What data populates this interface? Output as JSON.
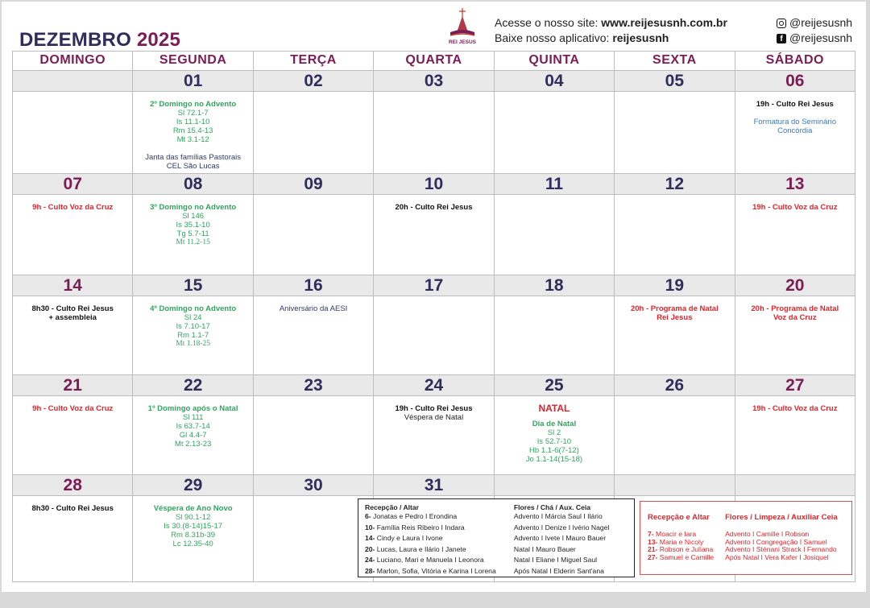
{
  "header": {
    "month": "DEZEMBRO",
    "year": "2025",
    "logo_text": "REI JESUS",
    "site_label": "Acesse o nosso site: ",
    "site_url": "www.reijesusnh.com.br",
    "app_label": "Baixe nosso aplicativo: ",
    "app_name": "reijesusnh",
    "instagram": "@reijesusnh",
    "facebook": "@reijesusnh"
  },
  "weekdays": [
    "DOMINGO",
    "SEGUNDA",
    "TERÇA",
    "QUARTA",
    "QUINTA",
    "SEXTA",
    "SÁBADO"
  ],
  "colors": {
    "accent": "#7b1d55",
    "navy": "#2e2d5c",
    "green": "#2ea65c",
    "red": "#e0252b"
  },
  "weeks": [
    {
      "days": [
        {
          "num": "",
          "items": []
        },
        {
          "num": "01",
          "items": [
            {
              "t": "2º Domingo no Advento",
              "s": "green-bold"
            },
            {
              "t": "Sl 72.1-7",
              "s": "green"
            },
            {
              "t": "Is 11.1-10",
              "s": "green"
            },
            {
              "t": "Rm 15.4-13",
              "s": "green"
            },
            {
              "t": "Mt 3.1-12",
              "s": "green"
            },
            {
              "t": "Janta das famílias Pastorais",
              "s": "navy",
              "gap": true
            },
            {
              "t": "CEL São Lucas",
              "s": "navy"
            }
          ]
        },
        {
          "num": "02",
          "items": []
        },
        {
          "num": "03",
          "items": []
        },
        {
          "num": "04",
          "items": []
        },
        {
          "num": "05",
          "items": []
        },
        {
          "num": "06",
          "items": [
            {
              "t": "19h - Culto Rei Jesus",
              "s": "black-bold"
            },
            {
              "t": "Formatura do Seminário",
              "s": "blue",
              "gap": true
            },
            {
              "t": "Concórdia",
              "s": "blue"
            }
          ]
        }
      ]
    },
    {
      "days": [
        {
          "num": "07",
          "items": [
            {
              "t": "9h - Culto Voz da Cruz",
              "s": "red-bold"
            }
          ]
        },
        {
          "num": "08",
          "items": [
            {
              "t": "3º Domingo no Advento",
              "s": "green-bold"
            },
            {
              "t": "Sl 146",
              "s": "green"
            },
            {
              "t": "Is 35.1-10",
              "s": "green"
            },
            {
              "t": "Tg 5.7-11",
              "s": "green"
            },
            {
              "t": "Mt 11.2-15",
              "s": "green-serif"
            }
          ]
        },
        {
          "num": "09",
          "items": []
        },
        {
          "num": "10",
          "items": [
            {
              "t": "20h - Culto Rei Jesus",
              "s": "black-bold"
            }
          ]
        },
        {
          "num": "11",
          "items": []
        },
        {
          "num": "12",
          "items": []
        },
        {
          "num": "13",
          "items": [
            {
              "t": "19h - Culto Voz da Cruz",
              "s": "red-bold"
            }
          ]
        }
      ]
    },
    {
      "days": [
        {
          "num": "14",
          "items": [
            {
              "t": "8h30 - Culto Rei Jesus",
              "s": "black-bold"
            },
            {
              "t": "+ assembleia",
              "s": "black-bold"
            }
          ]
        },
        {
          "num": "15",
          "items": [
            {
              "t": "4º Domingo no Advento",
              "s": "green-bold"
            },
            {
              "t": "Sl 24",
              "s": "green"
            },
            {
              "t": "Is 7.10-17",
              "s": "green"
            },
            {
              "t": "Rm 1.1-7",
              "s": "green"
            },
            {
              "t": "Mt 1.18-25",
              "s": "green-serif"
            }
          ]
        },
        {
          "num": "16",
          "items": [
            {
              "t": "Aniversário da AESI",
              "s": "navy"
            }
          ]
        },
        {
          "num": "17",
          "items": []
        },
        {
          "num": "18",
          "items": []
        },
        {
          "num": "19",
          "items": [
            {
              "t": "20h - Programa de Natal",
              "s": "red-bold"
            },
            {
              "t": "Rei Jesus",
              "s": "red-bold"
            }
          ]
        },
        {
          "num": "20",
          "items": [
            {
              "t": "20h - Programa de Natal",
              "s": "red-bold"
            },
            {
              "t": "Voz da Cruz",
              "s": "red-bold"
            }
          ]
        }
      ]
    },
    {
      "days": [
        {
          "num": "21",
          "items": [
            {
              "t": "9h - Culto Voz da Cruz",
              "s": "red-bold"
            }
          ]
        },
        {
          "num": "22",
          "items": [
            {
              "t": "1º Domingo após o Natal",
              "s": "green-bold"
            },
            {
              "t": "Sl 111",
              "s": "green"
            },
            {
              "t": "Is 63.7-14",
              "s": "green"
            },
            {
              "t": "Gl 4.4-7",
              "s": "green"
            },
            {
              "t": "Mt 2.13-23",
              "s": "green"
            }
          ]
        },
        {
          "num": "23",
          "items": []
        },
        {
          "num": "24",
          "items": [
            {
              "t": "19h - Culto Rei Jesus",
              "s": "black-bold"
            },
            {
              "t": "Véspera de Natal",
              "s": "dark"
            }
          ]
        },
        {
          "num": "25",
          "items": [
            {
              "t": "NATAL",
              "s": "red-big"
            },
            {
              "t": "Dia de Natal",
              "s": "green-bold"
            },
            {
              "t": "Sl 2",
              "s": "green"
            },
            {
              "t": "Is 52.7-10",
              "s": "green"
            },
            {
              "t": "Hb 1.1-6(7-12)",
              "s": "green"
            },
            {
              "t": "Jo 1.1-14(15-18)",
              "s": "green"
            }
          ]
        },
        {
          "num": "26",
          "items": []
        },
        {
          "num": "27",
          "items": [
            {
              "t": "19h - Culto Voz da Cruz",
              "s": "red-bold"
            }
          ]
        }
      ]
    },
    {
      "days": [
        {
          "num": "28",
          "items": [
            {
              "t": "8h30 - Culto Rei Jesus",
              "s": "black-bold"
            }
          ]
        },
        {
          "num": "29",
          "items": [
            {
              "t": "Véspera de Ano Novo",
              "s": "green-bold"
            },
            {
              "t": "Sl 90.1-12",
              "s": "green"
            },
            {
              "t": "Is 30.(8-14)15-17",
              "s": "green"
            },
            {
              "t": "Rm 8.31b-39",
              "s": "green"
            },
            {
              "t": "Lc 12.35-40",
              "s": "green"
            }
          ]
        },
        {
          "num": "30",
          "items": []
        },
        {
          "num": "31",
          "items": []
        },
        {
          "num": "",
          "items": []
        },
        {
          "num": "",
          "items": []
        },
        {
          "num": "",
          "items": []
        }
      ]
    }
  ],
  "schedule_box": {
    "col1_title": "Recepção / Altar",
    "col2_title": "Flores / Chá / Aux. Ceia",
    "rows": [
      {
        "n": "6-",
        "a": " Jonatas e Pedro I Erondina",
        "b": "Advento I Márcia Saul I Ilário"
      },
      {
        "n": "10-",
        "a": " Família Reis Ribeiro I Indara",
        "b": "Advento I Denize I Ivério Nagel"
      },
      {
        "n": "14-",
        "a": " Cindy e Laura I Ivone",
        "b": "Advento I Ivete I Mauro Bauer"
      },
      {
        "n": "20-",
        "a": " Lucas, Laura e Ilário I Janete",
        "b": "Natal I Mauro Bauer"
      },
      {
        "n": "24-",
        "a": " Luciano, Mari e Manuela I Leonora",
        "b": "Natal I Eliane I Miguel Saul"
      },
      {
        "n": "28-",
        "a": " Marlon, Sofia, Vitória e Karina I Lorena",
        "b": "Após Natal I Elderin Sant'ana"
      }
    ]
  },
  "schedule_box_red": {
    "col1_title": "Recepção e Altar",
    "col2_title": "Flores / Limpeza / Auxiliar Ceia",
    "rows": [
      {
        "n": "7-",
        "a": " Moacir e Iara",
        "b": "Advento I Camille I Robson"
      },
      {
        "n": "13-",
        "a": " Maria e Nicoly",
        "b": "Advento I Congregação I Samuel"
      },
      {
        "n": "21-",
        "a": " Robson e Juliana",
        "b": "Advento I Sténani Strack I Fernando"
      },
      {
        "n": "27-",
        "a": " Samuel e Camille",
        "b": "Após Natal I Vera Kafer I Josiquel"
      }
    ]
  }
}
